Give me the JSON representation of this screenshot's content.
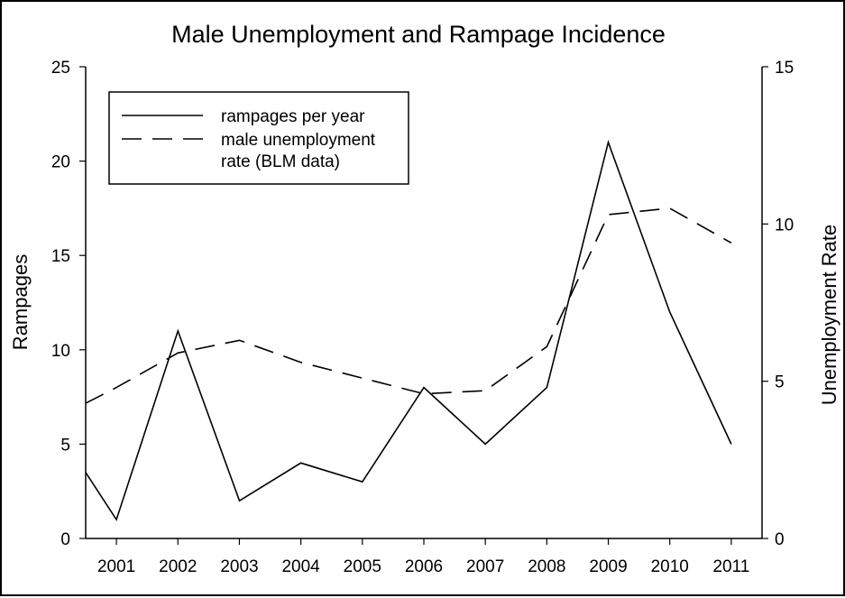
{
  "chart_data": {
    "type": "line",
    "title": "Male Unemployment and Rampage Incidence",
    "x": [
      2000.5,
      2001,
      2002,
      2003,
      2004,
      2005,
      2006,
      2007,
      2008,
      2009,
      2010,
      2011
    ],
    "x_ticks": [
      "2001",
      "2002",
      "2003",
      "2004",
      "2005",
      "2006",
      "2007",
      "2008",
      "2009",
      "2010",
      "2011"
    ],
    "xlim": [
      2000.5,
      2011.5
    ],
    "ylabel_left": "Rampages",
    "ylim_left": [
      0,
      25
    ],
    "yticks_left": [
      "0",
      "5",
      "10",
      "15",
      "20",
      "25"
    ],
    "ylabel_right": "Unemployment Rate",
    "ylim_right": [
      0,
      15
    ],
    "yticks_right": [
      "0",
      "5",
      "10",
      "15"
    ],
    "legend_position": "top-left",
    "grid": false,
    "series": [
      {
        "name": "rampages per year",
        "axis": "left",
        "style": "solid",
        "x": [
          2000.5,
          2001,
          2002,
          2003,
          2004,
          2005,
          2006,
          2007,
          2008,
          2009,
          2010,
          2011
        ],
        "values": [
          3.5,
          1,
          11,
          2,
          4,
          3,
          8,
          5,
          8,
          21,
          12,
          5
        ]
      },
      {
        "name": "male unemployment rate (BLM data)",
        "legend_lines": [
          "male unemployment",
          "rate (BLM data)"
        ],
        "axis": "right",
        "style": "dashed",
        "x": [
          2000.5,
          2001,
          2002,
          2003,
          2004,
          2005,
          2006,
          2007,
          2008,
          2009,
          2010,
          2011
        ],
        "values": [
          4.3,
          4.8,
          5.9,
          6.3,
          5.6,
          5.1,
          4.6,
          4.7,
          6.1,
          10.3,
          10.5,
          9.4
        ]
      }
    ]
  }
}
